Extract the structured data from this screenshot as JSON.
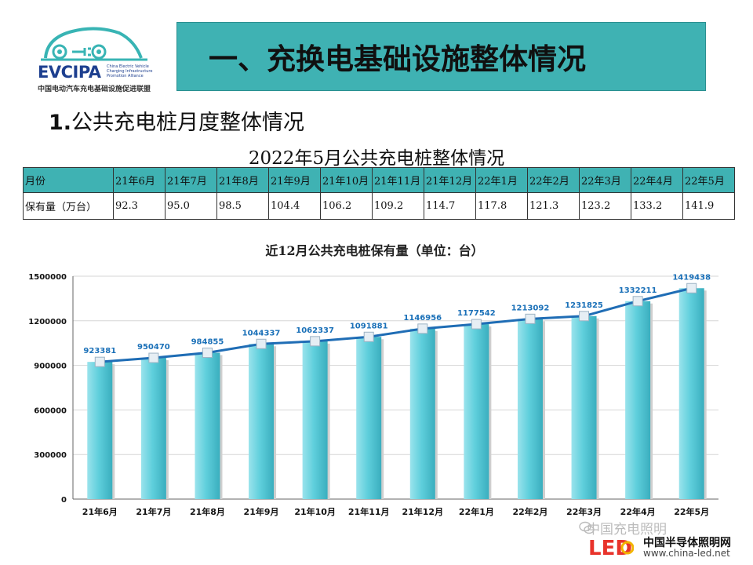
{
  "logo": {
    "name": "EVCIPA",
    "subtitle_en": [
      "China Electric Vehicle",
      "Charging Infrastructure",
      "Promotion Alliance"
    ],
    "subtitle_cn": "中国电动汽车充电基础设施促进联盟"
  },
  "banner": {
    "title": "一、充换电基础设施整体情况"
  },
  "section": {
    "num": "1.",
    "title": "公共充电桩月度整体情况"
  },
  "table": {
    "title": "2022年5月公共充电桩整体情况",
    "row_label_month": "月份",
    "row_label_value": "保有量（万台）",
    "months": [
      "21年6月",
      "21年7月",
      "21年8月",
      "21年9月",
      "21年10月",
      "21年11月",
      "21年12月",
      "22年1月",
      "22年2月",
      "22年3月",
      "22年4月",
      "22年5月"
    ],
    "values": [
      "92.3",
      "95.0",
      "98.5",
      "104.4",
      "106.2",
      "109.2",
      "114.7",
      "117.8",
      "121.3",
      "123.2",
      "133.2",
      "141.9"
    ]
  },
  "chart_data": {
    "type": "bar",
    "title": "近12月公共充电桩保有量（单位：台）",
    "categories": [
      "21年6月",
      "21年7月",
      "21年8月",
      "21年9月",
      "21年10月",
      "21年11月",
      "21年12月",
      "22年1月",
      "22年2月",
      "22年3月",
      "22年4月",
      "22年5月"
    ],
    "series": [
      {
        "values": [
          923381,
          950470,
          984855,
          1044337,
          1062337,
          1091881,
          1146956,
          1177542,
          1213092,
          1231825,
          1332211,
          1419438
        ]
      }
    ],
    "overlay_line": true,
    "ylim": [
      0,
      1500000
    ],
    "yticks": [
      "0",
      "300000",
      "600000",
      "900000",
      "1200000",
      "1500000"
    ],
    "grid": true,
    "colors": {
      "bar": "#5fcfdc",
      "line": "#1f6db5",
      "label": "#1a70b8"
    }
  },
  "watermark": {
    "line1": "中国充电照明",
    "line2": "中国半导体照明网",
    "line3": "www.china-led.net",
    "led": "LED"
  }
}
